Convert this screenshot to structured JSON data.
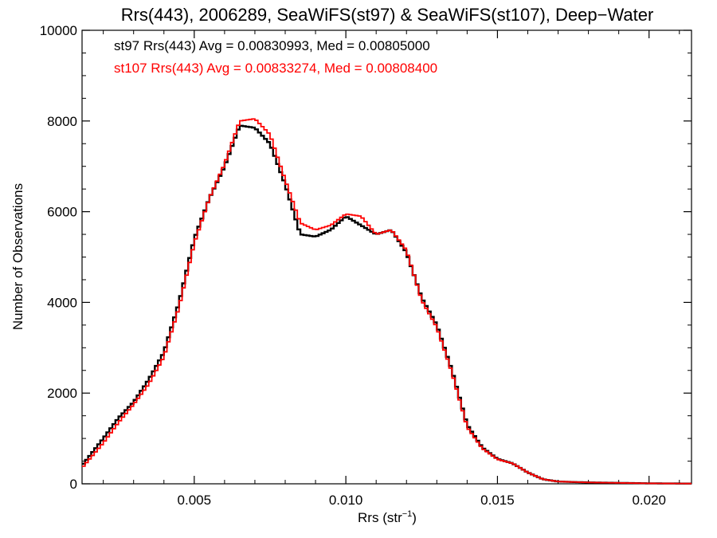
{
  "chart_data": {
    "type": "line",
    "step": true,
    "title": "Rrs(443), 2006289, SeaWiFS(st97) & SeaWiFS(st107), Deep−Water",
    "xlabel_base": "Rrs (str",
    "xlabel_sup": "−1",
    "xlabel_close": ")",
    "ylabel": "Number of Observations",
    "xlim": [
      0.0013,
      0.0214
    ],
    "ylim": [
      0,
      10000
    ],
    "x_ticks": [
      0.005,
      0.01,
      0.015,
      0.02
    ],
    "x_tick_labels": [
      "0.005",
      "0.010",
      "0.015",
      "0.020"
    ],
    "y_ticks": [
      0,
      2000,
      4000,
      6000,
      8000,
      10000
    ],
    "y_tick_labels": [
      "0",
      "2000",
      "4000",
      "6000",
      "8000",
      "10000"
    ],
    "grid": false,
    "annotations": [
      {
        "text": "st97 Rrs(443) Avg = 0.00830993, Med = 0.00805000",
        "color": "#000000"
      },
      {
        "text": "st107 Rrs(443) Avg = 0.00833274, Med = 0.00808400",
        "color": "#ff0000"
      }
    ],
    "series": [
      {
        "color": "#000000",
        "x": [
          0.0013,
          0.002,
          0.0025,
          0.003,
          0.0035,
          0.004,
          0.0045,
          0.005,
          0.0055,
          0.006,
          0.0065,
          0.007,
          0.0075,
          0.008,
          0.0085,
          0.009,
          0.0095,
          0.01,
          0.0105,
          0.011,
          0.0115,
          0.012,
          0.0125,
          0.013,
          0.0135,
          0.014,
          0.0145,
          0.015,
          0.0155,
          0.016,
          0.0165,
          0.017,
          0.018,
          0.019,
          0.02,
          0.0214
        ],
        "y": [
          400,
          1000,
          1450,
          1800,
          2300,
          2900,
          4000,
          5400,
          6300,
          7000,
          7900,
          7850,
          7500,
          6600,
          5500,
          5450,
          5600,
          5900,
          5700,
          5500,
          5600,
          5100,
          4100,
          3500,
          2500,
          1300,
          800,
          550,
          450,
          250,
          100,
          50,
          30,
          20,
          10,
          5
        ]
      },
      {
        "color": "#ff0000",
        "x": [
          0.0013,
          0.002,
          0.0025,
          0.003,
          0.0035,
          0.004,
          0.0045,
          0.005,
          0.0055,
          0.006,
          0.0065,
          0.007,
          0.0075,
          0.008,
          0.0085,
          0.009,
          0.0095,
          0.01,
          0.0105,
          0.011,
          0.0115,
          0.012,
          0.0125,
          0.013,
          0.0135,
          0.014,
          0.0145,
          0.015,
          0.0155,
          0.016,
          0.0165,
          0.017,
          0.018,
          0.019,
          0.02,
          0.0214
        ],
        "y": [
          350,
          900,
          1350,
          1750,
          2200,
          2800,
          3900,
          5300,
          6300,
          7050,
          8000,
          8050,
          7700,
          6700,
          5750,
          5600,
          5700,
          5950,
          5900,
          5500,
          5600,
          5150,
          4050,
          3450,
          2450,
          1250,
          780,
          540,
          450,
          250,
          100,
          50,
          30,
          20,
          10,
          5
        ]
      }
    ]
  }
}
